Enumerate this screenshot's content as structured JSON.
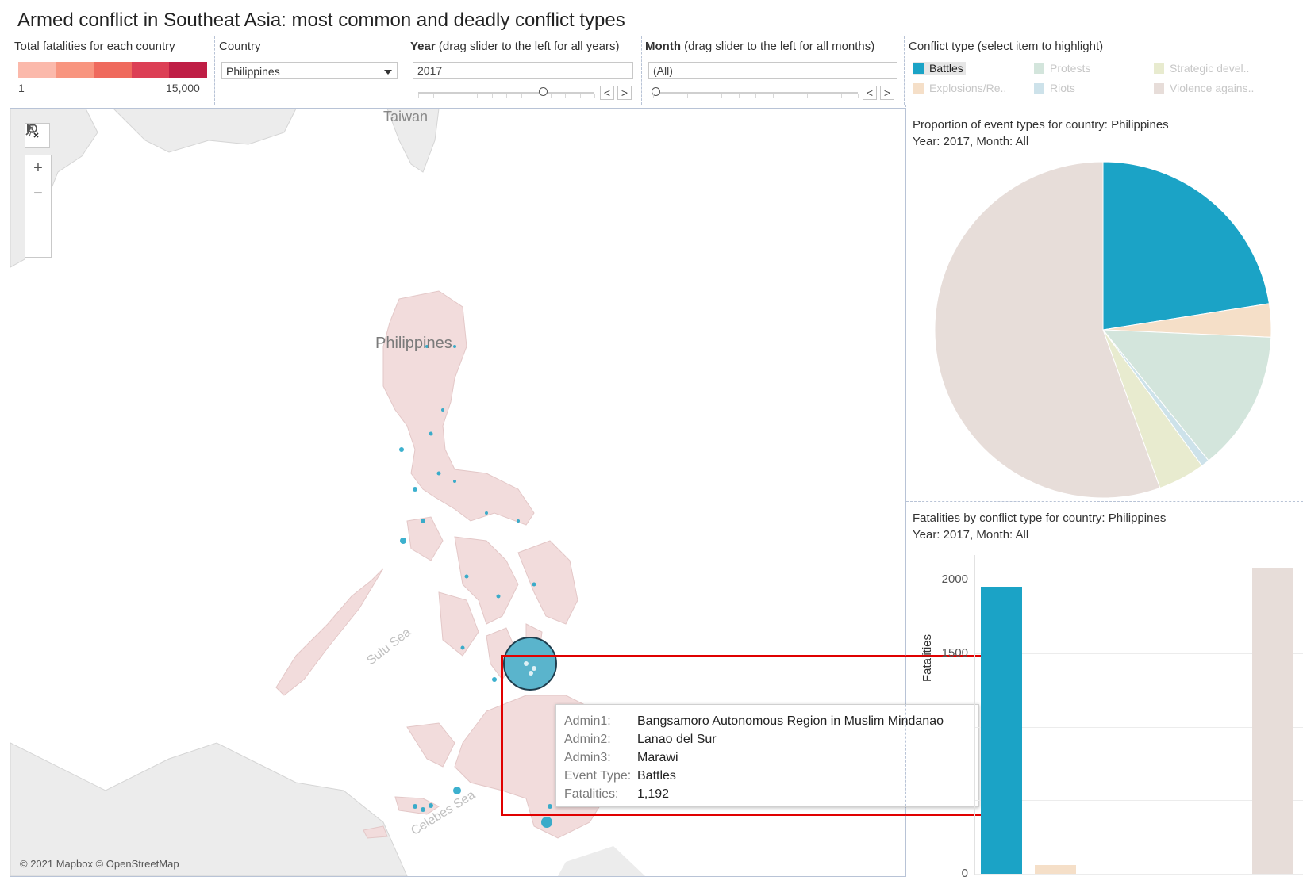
{
  "title": "Armed conflict in Southeat Asia: most common and deadly conflict types",
  "filters": {
    "fatalities_legend": {
      "label": "Total fatalities for each country",
      "min_label": "1",
      "max_label": "15,000",
      "colors": [
        "#fbb9ab",
        "#f8957f",
        "#ef6a5d",
        "#dc3f55",
        "#bf1e45"
      ]
    },
    "country": {
      "label": "Country",
      "value": "Philippines"
    },
    "year": {
      "label_bold": "Year",
      "label_rest": " (drag slider to the left for all years)",
      "value": "2017",
      "prev": "<",
      "next": ">"
    },
    "month": {
      "label_bold": "Month",
      "label_rest": " (drag slider to the left for all months)",
      "value": "(All)",
      "prev": "<",
      "next": ">"
    },
    "conflict_type": {
      "label": "Conflict type (select item to highlight)",
      "items": [
        {
          "label": "Battles",
          "color": "#1ba3c6",
          "active": true
        },
        {
          "label": "Protests",
          "color": "#d3e5dc",
          "active": false
        },
        {
          "label": "Strategic devel..",
          "color": "#e8ebcf",
          "active": false
        },
        {
          "label": "Explosions/Re..",
          "color": "#f5dfc8",
          "active": false
        },
        {
          "label": "Riots",
          "color": "#cde2ea",
          "active": false
        },
        {
          "label": "Violence agains..",
          "color": "#e7ddd9",
          "active": false
        }
      ]
    }
  },
  "map": {
    "labels": {
      "taiwan": "Taiwan",
      "philippines": "Philippines",
      "sulu": "Sulu Sea",
      "celebes": "Celebes Sea"
    },
    "attribution": "© 2021 Mapbox © OpenStreetMap",
    "marker_color": "#1ba3c6"
  },
  "tooltip": {
    "rows": [
      {
        "key": "Admin1:",
        "value": "Bangsamoro Autonomous Region in Muslim Mindanao"
      },
      {
        "key": "Admin2:",
        "value": "Lanao del Sur"
      },
      {
        "key": "Admin3:",
        "value": "Marawi"
      },
      {
        "key": "Event Type:",
        "value": "Battles"
      },
      {
        "key": "Fatalities:",
        "value": "1,192"
      }
    ]
  },
  "pie_panel": {
    "title_line1": "Proportion of event types for country: Philippines",
    "title_line2": "Year: 2017, Month: All"
  },
  "bar_panel": {
    "title_line1": "Fatalities by conflict type for country: Philippines",
    "title_line2": "Year: 2017, Month: All",
    "ytitle": "Fatalities"
  },
  "chart_data": [
    {
      "type": "pie",
      "title": "Proportion of event types for country: Philippines",
      "categories": [
        "Battles",
        "Explosions/Remote violence",
        "Protests",
        "Riots",
        "Strategic developments",
        "Violence against civilians"
      ],
      "values": [
        22.5,
        3.2,
        13.5,
        0.8,
        4.5,
        55.5
      ],
      "colors": [
        "#1ba3c6",
        "#f5dfc8",
        "#d3e5dc",
        "#cde2ea",
        "#e8ebcf",
        "#e7ddd9"
      ]
    },
    {
      "type": "bar",
      "title": "Fatalities by conflict type for country: Philippines",
      "categories": [
        "Battles",
        "Explosions/Remote violence",
        "Violence against civilians"
      ],
      "values": [
        1950,
        60,
        2080
      ],
      "colors": [
        "#1ba3c6",
        "#f5dfc8",
        "#e7ddd9"
      ],
      "yticks": [
        0,
        500,
        1000,
        1500,
        2000
      ],
      "ytick_labels": [
        "0",
        "",
        "",
        "1500",
        "2000"
      ],
      "ylim": [
        0,
        2000
      ],
      "ylabel": "Fatalities"
    }
  ]
}
